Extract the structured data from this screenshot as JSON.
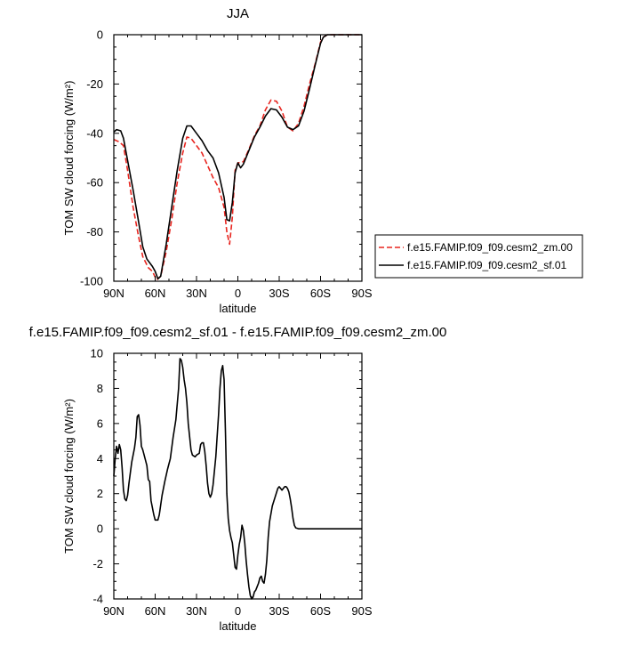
{
  "chart_data": [
    {
      "type": "line",
      "title": "JJA",
      "xlabel": "latitude",
      "ylabel": "TOM SW cloud forcing (W/m²)",
      "xlim": [
        90,
        -90
      ],
      "ylim": [
        -100,
        0
      ],
      "xticks": [
        90,
        60,
        30,
        0,
        -30,
        -60,
        -90
      ],
      "xtick_labels": [
        "90N",
        "60N",
        "30N",
        "0",
        "30S",
        "60S",
        "90S"
      ],
      "yticks": [
        0,
        -20,
        -40,
        -60,
        -80,
        -100
      ],
      "ytick_labels": [
        "0",
        "-20",
        "-40",
        "-60",
        "-80",
        "-100"
      ],
      "legend_position": "right",
      "series": [
        {
          "name": "f.e15.FAMIP.f09_f09.cesm2_zm.00",
          "color": "#e8251f",
          "dash": "dashed",
          "points": [
            [
              90,
              -42.5
            ],
            [
              86,
              -43.5
            ],
            [
              83,
              -45
            ],
            [
              80,
              -55
            ],
            [
              76,
              -70
            ],
            [
              72,
              -82
            ],
            [
              69,
              -90
            ],
            [
              65,
              -94.5
            ],
            [
              62,
              -96
            ],
            [
              59,
              -99.5
            ],
            [
              56,
              -98
            ],
            [
              52,
              -88
            ],
            [
              48,
              -75
            ],
            [
              44,
              -60
            ],
            [
              40,
              -48
            ],
            [
              37,
              -41.5
            ],
            [
              34,
              -42
            ],
            [
              30,
              -45
            ],
            [
              26,
              -48
            ],
            [
              22,
              -53
            ],
            [
              18,
              -58
            ],
            [
              14,
              -62
            ],
            [
              10,
              -70
            ],
            [
              8,
              -80
            ],
            [
              6,
              -85
            ],
            [
              4,
              -74
            ],
            [
              2,
              -55
            ],
            [
              0,
              -52
            ],
            [
              -4,
              -51.5
            ],
            [
              -8,
              -46.5
            ],
            [
              -12,
              -41
            ],
            [
              -16,
              -37
            ],
            [
              -20,
              -30.5
            ],
            [
              -24,
              -26.5
            ],
            [
              -28,
              -27
            ],
            [
              -32,
              -31
            ],
            [
              -36,
              -37.5
            ],
            [
              -40,
              -39
            ],
            [
              -44,
              -36
            ],
            [
              -48,
              -29
            ],
            [
              -52,
              -20
            ],
            [
              -56,
              -12
            ],
            [
              -60,
              -3
            ],
            [
              -62,
              -1
            ],
            [
              -65,
              0
            ],
            [
              -90,
              0
            ]
          ]
        },
        {
          "name": "f.e15.FAMIP.f09_f09.cesm2_sf.01",
          "color": "#000000",
          "dash": "solid",
          "points": [
            [
              90,
              -39.5
            ],
            [
              88,
              -38.5
            ],
            [
              85,
              -39
            ],
            [
              83,
              -42
            ],
            [
              80,
              -51
            ],
            [
              76,
              -63
            ],
            [
              72,
              -76
            ],
            [
              69,
              -86
            ],
            [
              66,
              -91
            ],
            [
              62,
              -94
            ],
            [
              60,
              -96
            ],
            [
              58,
              -99
            ],
            [
              56,
              -98
            ],
            [
              52,
              -85
            ],
            [
              48,
              -70
            ],
            [
              44,
              -55
            ],
            [
              40,
              -42
            ],
            [
              37,
              -37
            ],
            [
              34,
              -37
            ],
            [
              30,
              -40
            ],
            [
              26,
              -43
            ],
            [
              22,
              -47
            ],
            [
              18,
              -50
            ],
            [
              14,
              -56
            ],
            [
              10,
              -66
            ],
            [
              8,
              -75
            ],
            [
              6,
              -75.5
            ],
            [
              4,
              -68
            ],
            [
              2,
              -56
            ],
            [
              0,
              -52
            ],
            [
              -2,
              -54
            ],
            [
              -4,
              -52.5
            ],
            [
              -8,
              -47
            ],
            [
              -12,
              -41.5
            ],
            [
              -16,
              -37.5
            ],
            [
              -20,
              -33
            ],
            [
              -24,
              -30
            ],
            [
              -28,
              -30.5
            ],
            [
              -32,
              -33.5
            ],
            [
              -36,
              -37.5
            ],
            [
              -40,
              -38.5
            ],
            [
              -44,
              -37
            ],
            [
              -48,
              -31
            ],
            [
              -52,
              -22
            ],
            [
              -56,
              -12.5
            ],
            [
              -60,
              -3.5
            ],
            [
              -62,
              -1
            ],
            [
              -65,
              0
            ],
            [
              -90,
              0
            ]
          ]
        }
      ]
    },
    {
      "type": "line",
      "title": "f.e15.FAMIP.f09_f09.cesm2_sf.01 - f.e15.FAMIP.f09_f09.cesm2_zm.00",
      "xlabel": "latitude",
      "ylabel": "TOM SW cloud forcing (W/m²)",
      "xlim": [
        90,
        -90
      ],
      "ylim": [
        -4,
        10
      ],
      "xticks": [
        90,
        60,
        30,
        0,
        -30,
        -60,
        -90
      ],
      "xtick_labels": [
        "90N",
        "60N",
        "30N",
        "0",
        "30S",
        "60S",
        "90S"
      ],
      "yticks": [
        10,
        8,
        6,
        4,
        2,
        0,
        -2,
        -4
      ],
      "ytick_labels": [
        "10",
        "8",
        "6",
        "4",
        "2",
        "0",
        "-2",
        "-4"
      ],
      "series": [
        {
          "name": "",
          "color": "#000000",
          "dash": "solid",
          "points": [
            [
              90,
              3
            ],
            [
              89,
              4
            ],
            [
              88,
              4.7
            ],
            [
              87,
              4.3
            ],
            [
              86,
              4.8
            ],
            [
              85,
              4.5
            ],
            [
              84,
              3.5
            ],
            [
              83,
              2.2
            ],
            [
              82,
              1.7
            ],
            [
              81,
              1.6
            ],
            [
              80,
              1.9
            ],
            [
              79,
              2.6
            ],
            [
              78,
              3.2
            ],
            [
              77,
              3.8
            ],
            [
              76,
              4.2
            ],
            [
              75,
              4.6
            ],
            [
              74,
              5.2
            ],
            [
              73,
              6.4
            ],
            [
              72,
              6.5
            ],
            [
              71,
              5.9
            ],
            [
              70,
              4.7
            ],
            [
              69,
              4.5
            ],
            [
              68,
              4.2
            ],
            [
              66,
              3.6
            ],
            [
              65,
              2.8
            ],
            [
              64,
              2.7
            ],
            [
              63,
              1.6
            ],
            [
              61,
              0.8
            ],
            [
              60,
              0.5
            ],
            [
              58,
              0.5
            ],
            [
              57,
              0.8
            ],
            [
              55,
              1.9
            ],
            [
              53,
              2.7
            ],
            [
              51,
              3.4
            ],
            [
              49,
              4.0
            ],
            [
              47,
              5.2
            ],
            [
              45,
              6.2
            ],
            [
              43,
              8
            ],
            [
              42,
              9.7
            ],
            [
              41,
              9.6
            ],
            [
              40,
              9.2
            ],
            [
              39,
              8.5
            ],
            [
              38,
              8
            ],
            [
              37,
              7.2
            ],
            [
              36,
              6
            ],
            [
              34,
              4.5
            ],
            [
              33,
              4.2
            ],
            [
              31,
              4.1
            ],
            [
              30,
              4.2
            ],
            [
              28,
              4.3
            ],
            [
              27,
              4.8
            ],
            [
              26,
              4.9
            ],
            [
              25,
              4.9
            ],
            [
              24,
              4.4
            ],
            [
              23,
              3.6
            ],
            [
              22,
              2.6
            ],
            [
              21,
              2
            ],
            [
              20,
              1.8
            ],
            [
              19,
              2.0
            ],
            [
              18,
              2.5
            ],
            [
              16,
              4.1
            ],
            [
              14,
              6.5
            ],
            [
              13,
              8
            ],
            [
              12,
              9
            ],
            [
              11,
              9.3
            ],
            [
              10,
              8.5
            ],
            [
              9,
              5.5
            ],
            [
              8,
              2
            ],
            [
              7,
              0.6
            ],
            [
              6,
              -0.1
            ],
            [
              5,
              -0.5
            ],
            [
              4,
              -0.8
            ],
            [
              3,
              -1.5
            ],
            [
              2,
              -2.2
            ],
            [
              1,
              -2.3
            ],
            [
              0,
              -1.5
            ],
            [
              -1,
              -0.9
            ],
            [
              -2,
              -0.5
            ],
            [
              -3,
              0.2
            ],
            [
              -4,
              -0.1
            ],
            [
              -5,
              -0.8
            ],
            [
              -6,
              -1.8
            ],
            [
              -7,
              -2.6
            ],
            [
              -8,
              -3.3
            ],
            [
              -9,
              -3.8
            ],
            [
              -10,
              -4
            ],
            [
              -11,
              -3.9
            ],
            [
              -12,
              -3.6
            ],
            [
              -13,
              -3.5
            ],
            [
              -14,
              -3.3
            ],
            [
              -15,
              -3.1
            ],
            [
              -16,
              -2.8
            ],
            [
              -17,
              -2.7
            ],
            [
              -18,
              -3
            ],
            [
              -19,
              -3.1
            ],
            [
              -20,
              -2.6
            ],
            [
              -21,
              -1.8
            ],
            [
              -22,
              -0.5
            ],
            [
              -23,
              0.4
            ],
            [
              -25,
              1.3
            ],
            [
              -27,
              1.8
            ],
            [
              -29,
              2.3
            ],
            [
              -30,
              2.4
            ],
            [
              -31,
              2.3
            ],
            [
              -32,
              2.2
            ],
            [
              -33,
              2.3
            ],
            [
              -34,
              2.4
            ],
            [
              -35,
              2.4
            ],
            [
              -36,
              2.3
            ],
            [
              -37,
              2.1
            ],
            [
              -38,
              1.7
            ],
            [
              -39,
              1.2
            ],
            [
              -40,
              0.6
            ],
            [
              -41,
              0.2
            ],
            [
              -42,
              0.05
            ],
            [
              -44,
              0
            ],
            [
              -90,
              0
            ]
          ]
        }
      ]
    }
  ]
}
